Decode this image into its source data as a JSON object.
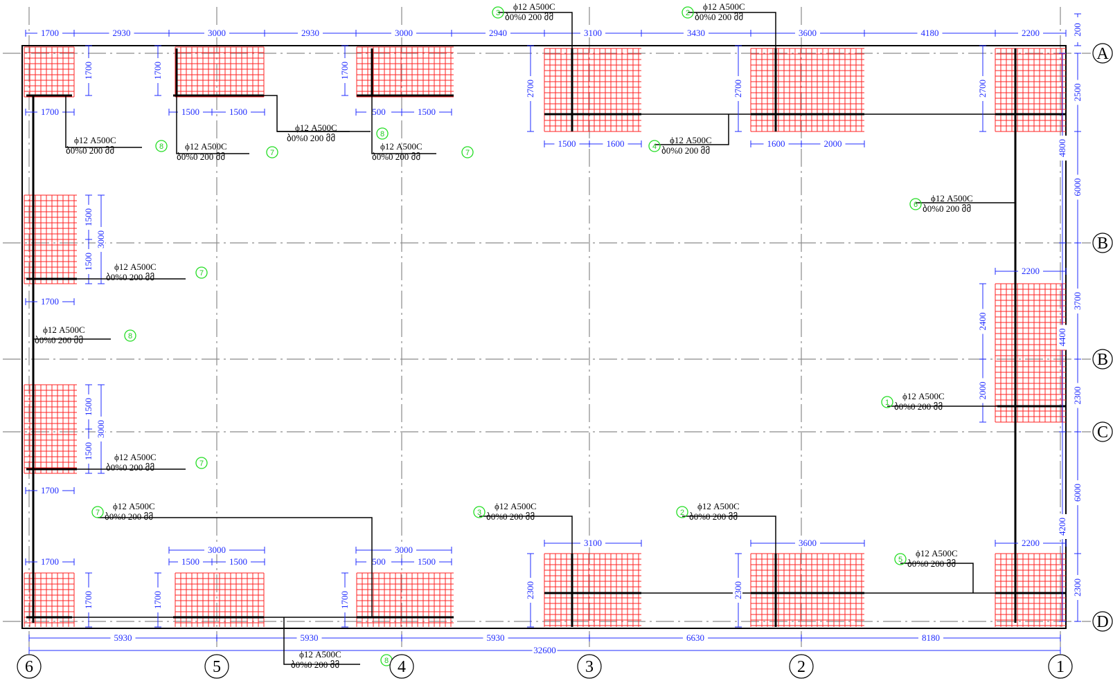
{
  "axes_vertical": [
    "6",
    "5",
    "4",
    "3",
    "2",
    "1"
  ],
  "axes_horizontal": [
    "A",
    "B",
    "B",
    "C",
    "D"
  ],
  "label_main": "ϕ12 A500C",
  "label_sub": "ბ0%0 200 მმ",
  "marks": [
    "1",
    "2",
    "3",
    "4",
    "5",
    "6",
    "7",
    "8"
  ],
  "top_dims": [
    "1700",
    "2930",
    "3000",
    "2930",
    "3000",
    "2940",
    "3100",
    "3430",
    "3600",
    "4180",
    "2200",
    "200"
  ],
  "bottom_dims": [
    "5930",
    "5930",
    "5930",
    "6630",
    "8180",
    "32600"
  ],
  "right_dims": [
    "2500",
    "6000",
    "4800",
    "3700",
    "4400",
    "2300",
    "4200",
    "6000",
    "2300"
  ],
  "local_dims": {
    "d1700": "1700",
    "d1500": "1500",
    "d500": "500",
    "d1600": "1600",
    "d2000": "2000",
    "d2700": "2700",
    "d2400": "2400",
    "d3000": "3000",
    "d3100": "3100",
    "d3600": "3600",
    "d2200": "2200",
    "d2300": "2300"
  },
  "colors": {
    "mesh": "#ff2020",
    "dims": "#1f2bff",
    "marks": "#22dd22",
    "axis": "#8a8a8a"
  }
}
